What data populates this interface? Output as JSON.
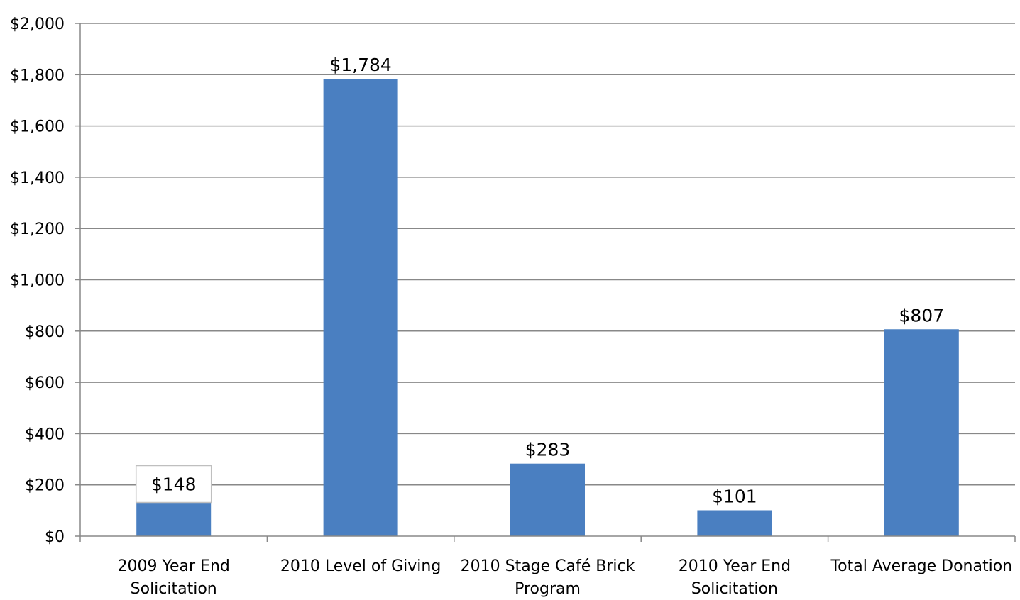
{
  "chart_data": {
    "type": "bar",
    "categories": [
      [
        "2009 Year End",
        "Solicitation"
      ],
      [
        "2010 Level of Giving"
      ],
      [
        "2010 Stage Café Brick",
        "Program"
      ],
      [
        "2010 Year End",
        "Solicitation"
      ],
      [
        "Total Average Donation"
      ]
    ],
    "values": [
      148,
      1784,
      283,
      101,
      807
    ],
    "data_labels": [
      "$148",
      "$1,784",
      "$283",
      "$101",
      "$807"
    ],
    "y_ticks": [
      "$0",
      "$200",
      "$400",
      "$600",
      "$800",
      "$1,000",
      "$1,200",
      "$1,400",
      "$1,600",
      "$1,800",
      "$2,000"
    ],
    "ylim": [
      0,
      2000
    ],
    "y_step": 200,
    "grid": true,
    "legend": "none",
    "highlighted_label_index": 0,
    "colors": {
      "bar": "#4a7fc1",
      "grid": "#888888",
      "axis": "#888888",
      "label_box": "#bfbfbf"
    }
  }
}
